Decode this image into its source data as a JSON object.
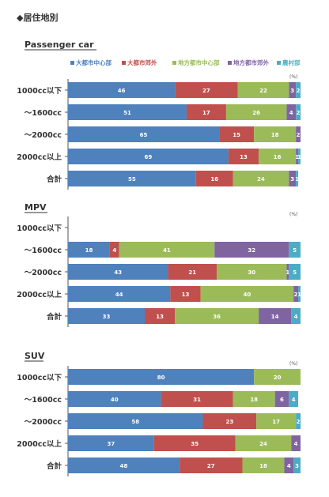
{
  "heading": "◆居住地別",
  "unit": "(%)",
  "colors": [
    "#4f81bd",
    "#c0504d",
    "#9bbb59",
    "#8064a2",
    "#4bacc6"
  ],
  "legend": [
    "大都市中心部",
    "大都市郊外",
    "地方都市中心部",
    "地方都市郊外",
    "農村部"
  ],
  "chart_data": [
    {
      "type": "bar",
      "orientation": "horizontal-stacked-100",
      "title": "Passenger car",
      "categories": [
        "1000cc以下",
        "～1600cc",
        "～2000cc",
        "2000cc以上",
        "合計"
      ],
      "series": [
        {
          "name": "大都市中心部",
          "values": [
            46,
            51,
            65,
            69,
            55
          ]
        },
        {
          "name": "大都市郊外",
          "values": [
            27,
            17,
            15,
            13,
            16
          ]
        },
        {
          "name": "地方都市中心部",
          "values": [
            22,
            26,
            18,
            16,
            24
          ]
        },
        {
          "name": "地方都市郊外",
          "values": [
            3,
            4,
            2,
            1,
            3
          ]
        },
        {
          "name": "農村部",
          "values": [
            2,
            2,
            0,
            1,
            1
          ]
        }
      ],
      "legend_position": "top-right"
    },
    {
      "type": "bar",
      "orientation": "horizontal-stacked-100",
      "title": "MPV",
      "categories": [
        "1000cc以下",
        "～1600cc",
        "～2000cc",
        "2000cc以上",
        "合計"
      ],
      "series": [
        {
          "name": "大都市中心部",
          "values": [
            0,
            18,
            43,
            44,
            33
          ]
        },
        {
          "name": "大都市郊外",
          "values": [
            0,
            4,
            21,
            13,
            13
          ]
        },
        {
          "name": "地方都市中心部",
          "values": [
            0,
            41,
            30,
            40,
            36
          ]
        },
        {
          "name": "地方都市郊外",
          "values": [
            0,
            32,
            1,
            2,
            14
          ]
        },
        {
          "name": "農村部",
          "values": [
            0,
            5,
            5,
            1,
            4
          ]
        }
      ]
    },
    {
      "type": "bar",
      "orientation": "horizontal-stacked-100",
      "title": "SUV",
      "categories": [
        "1000cc以下",
        "～1600cc",
        "～2000cc",
        "2000cc以上",
        "合計"
      ],
      "series": [
        {
          "name": "大都市中心部",
          "values": [
            80,
            40,
            58,
            37,
            48
          ]
        },
        {
          "name": "大都市郊外",
          "values": [
            0,
            31,
            23,
            35,
            27
          ]
        },
        {
          "name": "地方都市中心部",
          "values": [
            20,
            18,
            17,
            24,
            18
          ]
        },
        {
          "name": "地方都市郊外",
          "values": [
            0,
            6,
            0,
            4,
            4
          ]
        },
        {
          "name": "農村部",
          "values": [
            0,
            4,
            2,
            0,
            3
          ]
        }
      ]
    }
  ]
}
